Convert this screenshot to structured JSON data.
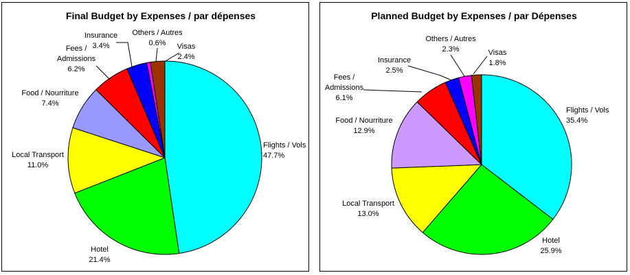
{
  "chart_data": [
    {
      "type": "pie",
      "title": "Final Budget by Expenses / par dépenses",
      "slices": [
        {
          "label": "Flights / Vols",
          "value": 47.7,
          "value_label": "47.7%",
          "color": "#00FFFF"
        },
        {
          "label": "Hotel",
          "value": 21.4,
          "value_label": "21.4%",
          "color": "#00FF00"
        },
        {
          "label": "Local Transport",
          "value": 11.0,
          "value_label": "11.0%",
          "color": "#FFFF00"
        },
        {
          "label": "Food / Nourriture",
          "value": 7.4,
          "value_label": "7.4%",
          "color": "#9999FF"
        },
        {
          "label": "Fees / Admissions",
          "value": 6.2,
          "value_label": "6.2%",
          "color": "#FF0000"
        },
        {
          "label": "Insurance",
          "value": 3.4,
          "value_label": "3.4%",
          "color": "#0000FF"
        },
        {
          "label": "Others / Autres",
          "value": 0.6,
          "value_label": "0.6%",
          "color": "#FF00FF"
        },
        {
          "label": "Visas",
          "value": 2.4,
          "value_label": "2.4%",
          "color": "#993300"
        }
      ]
    },
    {
      "type": "pie",
      "title": "Planned Budget by Expenses / par Dépenses",
      "slices": [
        {
          "label": "Flights / Vols",
          "value": 35.4,
          "value_label": "35.4%",
          "color": "#00FFFF"
        },
        {
          "label": "Hotel",
          "value": 25.9,
          "value_label": "25.9%",
          "color": "#00FF00"
        },
        {
          "label": "Local Transport",
          "value": 13.0,
          "value_label": "13.0%",
          "color": "#FFFF00"
        },
        {
          "label": "Food / Nourriture",
          "value": 12.9,
          "value_label": "12.9%",
          "color": "#CC99FF"
        },
        {
          "label": "Fees / Admissions",
          "value": 6.1,
          "value_label": "6.1%",
          "color": "#FF0000"
        },
        {
          "label": "Insurance",
          "value": 2.5,
          "value_label": "2.5%",
          "color": "#0000FF"
        },
        {
          "label": "Others / Autres",
          "value": 2.3,
          "value_label": "2.3%",
          "color": "#FF00FF"
        },
        {
          "label": "Visas",
          "value": 1.8,
          "value_label": "1.8%",
          "color": "#993300"
        }
      ]
    }
  ]
}
